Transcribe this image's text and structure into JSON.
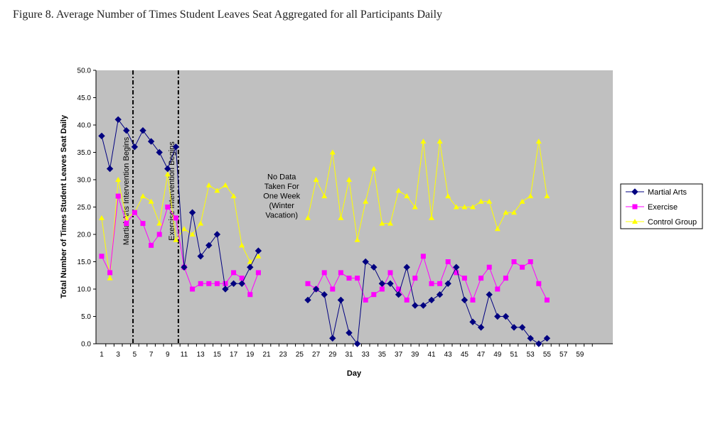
{
  "figure": {
    "title": "Figure 8. Average Number of Times Student Leaves Seat Aggregated for all Participants Daily"
  },
  "chart_data": {
    "type": "line",
    "title": "",
    "xlabel": "Day",
    "ylabel": "Total Number of Times Student Leaves Seat Daily",
    "xlim": [
      1,
      60
    ],
    "ylim": [
      0,
      50
    ],
    "y_ticks": [
      "0.0",
      "5.0",
      "10.0",
      "15.0",
      "20.0",
      "25.0",
      "30.0",
      "35.0",
      "40.0",
      "45.0",
      "50.0"
    ],
    "x_ticks": [
      "1",
      "3",
      "5",
      "7",
      "9",
      "11",
      "13",
      "15",
      "17",
      "19",
      "21",
      "23",
      "25",
      "27",
      "29",
      "31",
      "33",
      "35",
      "37",
      "39",
      "41",
      "43",
      "45",
      "47",
      "49",
      "51",
      "53",
      "55",
      "57",
      "59"
    ],
    "grid": false,
    "background": "#c0c0c0",
    "legend_position": "right",
    "series": [
      {
        "name": "Martial Arts",
        "color": "#000080",
        "marker": "diamond",
        "segments": [
          {
            "x": [
              1,
              2,
              3,
              4,
              5,
              6,
              7,
              8,
              9,
              10,
              11,
              12,
              13,
              14,
              15,
              16,
              17,
              18,
              19,
              20
            ],
            "y": [
              38,
              32,
              41,
              39,
              36,
              39,
              37,
              35,
              32,
              36,
              14,
              24,
              16,
              18,
              20,
              10,
              11,
              11,
              14,
              17
            ]
          },
          {
            "x": [
              26,
              27,
              28,
              29,
              30,
              31,
              32,
              33,
              34,
              35,
              36,
              37,
              38,
              39,
              40,
              41,
              42,
              43,
              44,
              45,
              46,
              47,
              48,
              49,
              50,
              51,
              52,
              53,
              54,
              55
            ],
            "y": [
              8,
              10,
              9,
              1,
              8,
              2,
              0,
              15,
              14,
              11,
              11,
              9,
              14,
              7,
              7,
              8,
              9,
              11,
              14,
              8,
              4,
              3,
              9,
              5,
              5,
              3,
              3,
              1,
              0,
              1
            ]
          }
        ]
      },
      {
        "name": "Exercise",
        "color": "#ff00ff",
        "marker": "square",
        "segments": [
          {
            "x": [
              1,
              2,
              3,
              4,
              5,
              6,
              7,
              8,
              9,
              10,
              11,
              12,
              13,
              14,
              15,
              16,
              17,
              18,
              19,
              20
            ],
            "y": [
              16,
              13,
              27,
              22,
              24,
              22,
              18,
              20,
              25,
              23,
              14,
              10,
              11,
              11,
              11,
              11,
              13,
              12,
              9,
              13
            ]
          },
          {
            "x": [
              26,
              27,
              28,
              29,
              30,
              31,
              32,
              33,
              34,
              35,
              36,
              37,
              38,
              39,
              40,
              41,
              42,
              43,
              44,
              45,
              46,
              47,
              48,
              49,
              50,
              51,
              52,
              53,
              54,
              55
            ],
            "y": [
              11,
              10,
              13,
              10,
              13,
              12,
              12,
              8,
              9,
              10,
              13,
              10,
              8,
              12,
              16,
              11,
              11,
              15,
              13,
              12,
              8,
              12,
              14,
              10,
              12,
              15,
              14,
              15,
              11,
              8
            ]
          }
        ]
      },
      {
        "name": "Control Group",
        "color": "#ffff00",
        "marker": "triangle",
        "segments": [
          {
            "x": [
              1,
              2,
              3,
              4,
              5,
              6,
              7,
              8,
              9,
              10,
              11,
              12,
              13,
              14,
              15,
              16,
              17,
              18,
              19,
              20
            ],
            "y": [
              23,
              12,
              30,
              23,
              24,
              27,
              26,
              22,
              31,
              19,
              21,
              20,
              22,
              29,
              28,
              29,
              27,
              18,
              15,
              16
            ]
          },
          {
            "x": [
              26,
              27,
              28,
              29,
              30,
              31,
              32,
              33,
              34,
              35,
              36,
              37,
              38,
              39,
              40,
              41,
              42,
              43,
              44,
              45,
              46,
              47,
              48,
              49,
              50,
              51,
              52,
              53,
              54,
              55
            ],
            "y": [
              23,
              30,
              27,
              35,
              23,
              30,
              19,
              26,
              32,
              22,
              22,
              28,
              27,
              25,
              37,
              23,
              37,
              27,
              25,
              25,
              25,
              26,
              26,
              21,
              24,
              24,
              26,
              27,
              37,
              27
            ]
          }
        ]
      }
    ],
    "vertical_lines": [
      {
        "x": 4.8,
        "label": "Martial Arts Intervention Begins"
      },
      {
        "x": 10.3,
        "label": "Exercise Intervention Begins"
      }
    ],
    "annotation": {
      "lines": [
        "No Data",
        "Taken For",
        "One Week",
        "(Winter",
        "Vacation)"
      ],
      "x": 23,
      "y": 28
    }
  }
}
